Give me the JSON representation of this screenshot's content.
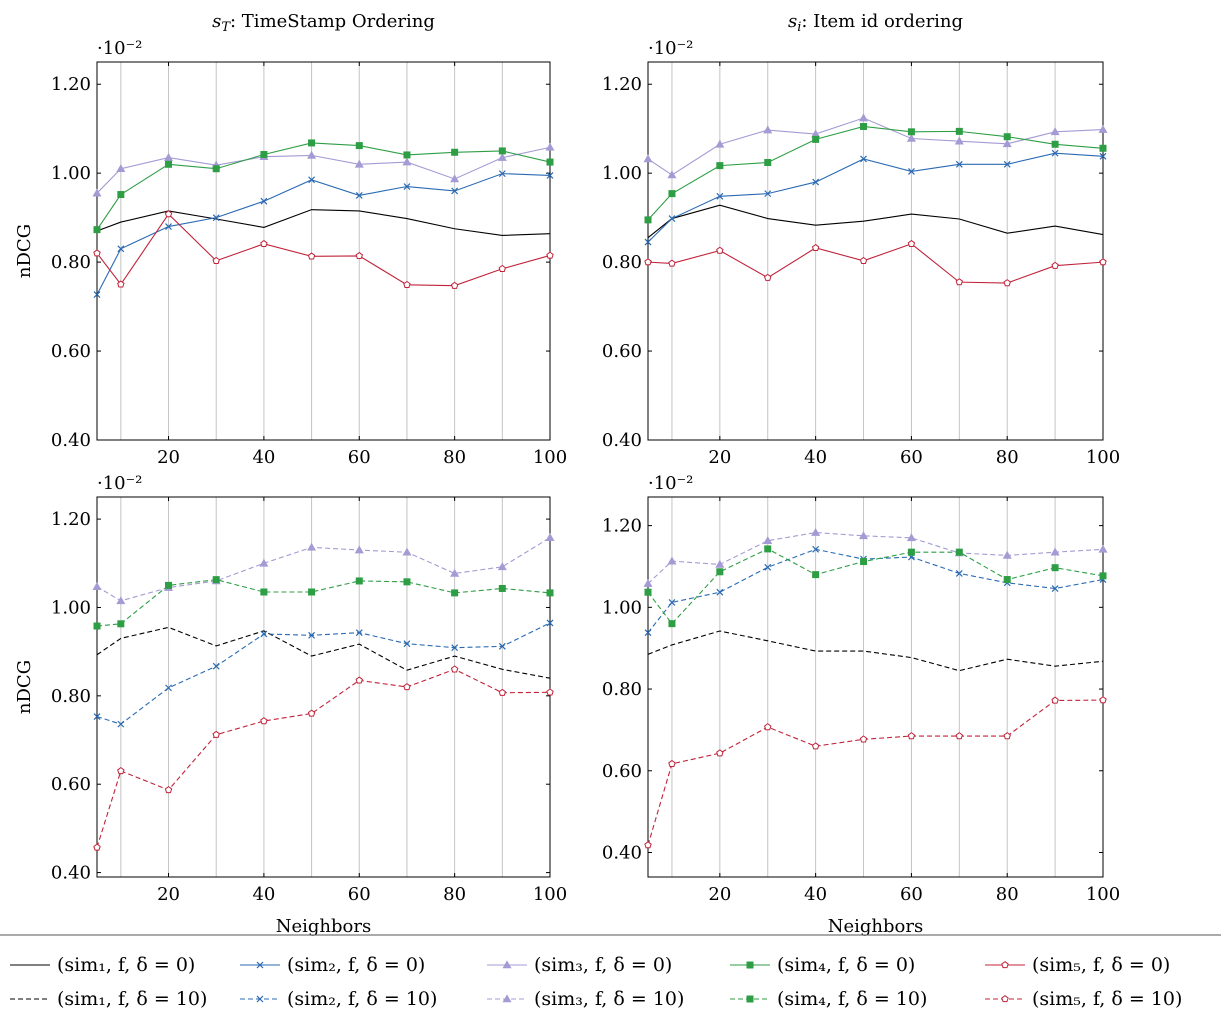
{
  "colors": {
    "sim1": "#000000",
    "sim2": "#2a6ab3",
    "sim3": "#a49bd4",
    "sim4": "#2e9e45",
    "sim5": "#c0233a",
    "grid": "#c4c4c4"
  },
  "legend": {
    "row1": [
      "(sim₁, f, δ = 0)",
      "(sim₂, f, δ = 0)",
      "(sim₃, f, δ = 0)",
      "(sim₄, f, δ = 0)",
      "(sim₅, f, δ = 0)"
    ],
    "row2": [
      "(sim₁, f, δ = 10)",
      "(sim₂, f, δ = 10)",
      "(sim₃, f, δ = 10)",
      "(sim₄, f, δ = 10)",
      "(sim₅, f, δ = 10)"
    ]
  },
  "chart_data": [
    {
      "type": "line",
      "title": "s_T: TimeStamp Ordering",
      "title_main": "s",
      "title_sub": "T",
      "title_rest": ": TimeStamp Ordering",
      "xlabel": "",
      "ylabel": "nDCG",
      "scale_label": "·10⁻²",
      "xlim": [
        5,
        100
      ],
      "ylim": [
        0.4,
        1.25
      ],
      "xticks": [
        20,
        40,
        60,
        80,
        100
      ],
      "yticks": [
        0.4,
        0.6,
        0.8,
        1.0,
        1.2
      ],
      "ytick_labels": [
        "0.40",
        "0.60",
        "0.80",
        "1.00",
        "1.20"
      ],
      "grid": "vertical",
      "x": [
        5,
        10,
        20,
        30,
        40,
        50,
        60,
        70,
        80,
        90,
        100
      ],
      "series": [
        {
          "name": "(sim₁, f, δ = 0)",
          "key": "sim1",
          "dashed": false,
          "marker": "none",
          "values": [
            0.87,
            0.89,
            0.915,
            0.897,
            0.878,
            0.918,
            0.915,
            0.898,
            0.875,
            0.86,
            0.864
          ]
        },
        {
          "name": "(sim₂, f, δ = 0)",
          "key": "sim2",
          "dashed": false,
          "marker": "x",
          "values": [
            0.727,
            0.83,
            0.88,
            0.9,
            0.937,
            0.985,
            0.95,
            0.97,
            0.96,
            0.999,
            0.995
          ]
        },
        {
          "name": "(sim₃, f, δ = 0)",
          "key": "sim3",
          "dashed": false,
          "marker": "triangle",
          "values": [
            0.955,
            1.01,
            1.035,
            1.018,
            1.037,
            1.04,
            1.02,
            1.025,
            0.987,
            1.035,
            1.058
          ]
        },
        {
          "name": "(sim₄, f, δ = 0)",
          "key": "sim4",
          "dashed": false,
          "marker": "square",
          "values": [
            0.873,
            0.952,
            1.02,
            1.01,
            1.042,
            1.068,
            1.062,
            1.041,
            1.047,
            1.05,
            1.025
          ]
        },
        {
          "name": "(sim₅, f, δ = 0)",
          "key": "sim5",
          "dashed": false,
          "marker": "pentagon",
          "values": [
            0.82,
            0.75,
            0.908,
            0.803,
            0.841,
            0.813,
            0.814,
            0.749,
            0.747,
            0.785,
            0.815
          ]
        }
      ]
    },
    {
      "type": "line",
      "title": "s_i: Item id ordering",
      "title_main": "s",
      "title_sub": "i",
      "title_rest": ": Item id ordering",
      "xlabel": "",
      "ylabel": "",
      "scale_label": "·10⁻²",
      "xlim": [
        5,
        100
      ],
      "ylim": [
        0.4,
        1.25
      ],
      "xticks": [
        20,
        40,
        60,
        80,
        100
      ],
      "yticks": [
        0.4,
        0.6,
        0.8,
        1.0,
        1.2
      ],
      "ytick_labels": [
        "0.40",
        "0.60",
        "0.80",
        "1.00",
        "1.20"
      ],
      "grid": "vertical",
      "x": [
        5,
        10,
        20,
        30,
        40,
        50,
        60,
        70,
        80,
        90,
        100
      ],
      "series": [
        {
          "name": "(sim₁, f, δ = 0)",
          "key": "sim1",
          "dashed": false,
          "marker": "none",
          "values": [
            0.855,
            0.898,
            0.928,
            0.898,
            0.883,
            0.892,
            0.908,
            0.897,
            0.865,
            0.881,
            0.862
          ]
        },
        {
          "name": "(sim₂, f, δ = 0)",
          "key": "sim2",
          "dashed": false,
          "marker": "x",
          "values": [
            0.845,
            0.898,
            0.948,
            0.954,
            0.98,
            1.032,
            1.004,
            1.02,
            1.02,
            1.045,
            1.038
          ]
        },
        {
          "name": "(sim₃, f, δ = 0)",
          "key": "sim3",
          "dashed": false,
          "marker": "triangle",
          "values": [
            1.032,
            0.996,
            1.065,
            1.097,
            1.088,
            1.124,
            1.078,
            1.072,
            1.066,
            1.093,
            1.098
          ]
        },
        {
          "name": "(sim₄, f, δ = 0)",
          "key": "sim4",
          "dashed": false,
          "marker": "square",
          "values": [
            0.895,
            0.954,
            1.017,
            1.024,
            1.076,
            1.105,
            1.093,
            1.094,
            1.082,
            1.065,
            1.056
          ]
        },
        {
          "name": "(sim₅, f, δ = 0)",
          "key": "sim5",
          "dashed": false,
          "marker": "pentagon",
          "values": [
            0.8,
            0.797,
            0.826,
            0.765,
            0.832,
            0.803,
            0.841,
            0.755,
            0.753,
            0.792,
            0.8
          ]
        }
      ]
    },
    {
      "type": "line",
      "title": "",
      "title_main": "",
      "title_sub": "",
      "title_rest": "",
      "xlabel": "Neighbors",
      "ylabel": "nDCG",
      "scale_label": "·10⁻²",
      "xlim": [
        5,
        100
      ],
      "ylim": [
        0.39,
        1.25
      ],
      "xticks": [
        20,
        40,
        60,
        80,
        100
      ],
      "yticks": [
        0.4,
        0.6,
        0.8,
        1.0,
        1.2
      ],
      "ytick_labels": [
        "0.40",
        "0.60",
        "0.80",
        "1.00",
        "1.20"
      ],
      "grid": "vertical",
      "x": [
        5,
        10,
        20,
        30,
        40,
        50,
        60,
        70,
        80,
        90,
        100
      ],
      "series": [
        {
          "name": "(sim₁, f, δ = 10)",
          "key": "sim1",
          "dashed": true,
          "marker": "none",
          "values": [
            0.893,
            0.93,
            0.955,
            0.913,
            0.947,
            0.89,
            0.917,
            0.858,
            0.89,
            0.86,
            0.84
          ]
        },
        {
          "name": "(sim₂, f, δ = 10)",
          "key": "sim2",
          "dashed": true,
          "marker": "x",
          "values": [
            0.753,
            0.736,
            0.818,
            0.867,
            0.94,
            0.937,
            0.943,
            0.918,
            0.909,
            0.912,
            0.965
          ]
        },
        {
          "name": "(sim₃, f, δ = 10)",
          "key": "sim3",
          "dashed": true,
          "marker": "triangle",
          "values": [
            1.047,
            1.015,
            1.045,
            1.06,
            1.1,
            1.136,
            1.13,
            1.125,
            1.077,
            1.092,
            1.158
          ]
        },
        {
          "name": "(sim₄, f, δ = 10)",
          "key": "sim4",
          "dashed": true,
          "marker": "square",
          "values": [
            0.958,
            0.963,
            1.05,
            1.063,
            1.035,
            1.035,
            1.06,
            1.058,
            1.033,
            1.043,
            1.033
          ]
        },
        {
          "name": "(sim₅, f, δ = 10)",
          "key": "sim5",
          "dashed": true,
          "marker": "pentagon",
          "values": [
            0.457,
            0.63,
            0.587,
            0.712,
            0.743,
            0.76,
            0.835,
            0.82,
            0.86,
            0.807,
            0.808
          ]
        }
      ]
    },
    {
      "type": "line",
      "title": "",
      "title_main": "",
      "title_sub": "",
      "title_rest": "",
      "xlabel": "Neighbors",
      "ylabel": "",
      "scale_label": "·10⁻²",
      "xlim": [
        5,
        100
      ],
      "ylim": [
        0.34,
        1.27
      ],
      "xticks": [
        20,
        40,
        60,
        80,
        100
      ],
      "yticks": [
        0.4,
        0.6,
        0.8,
        1.0,
        1.2
      ],
      "ytick_labels": [
        "0.40",
        "0.60",
        "0.80",
        "1.00",
        "1.20"
      ],
      "grid": "vertical",
      "x": [
        5,
        10,
        20,
        30,
        40,
        50,
        60,
        70,
        80,
        90,
        100
      ],
      "series": [
        {
          "name": "(sim₁, f, δ = 10)",
          "key": "sim1",
          "dashed": true,
          "marker": "none",
          "values": [
            0.885,
            0.908,
            0.942,
            0.918,
            0.893,
            0.893,
            0.877,
            0.845,
            0.873,
            0.856,
            0.868
          ]
        },
        {
          "name": "(sim₂, f, δ = 10)",
          "key": "sim2",
          "dashed": true,
          "marker": "x",
          "values": [
            0.938,
            1.012,
            1.037,
            1.098,
            1.142,
            1.118,
            1.123,
            1.083,
            1.06,
            1.046,
            1.068
          ]
        },
        {
          "name": "(sim₃, f, δ = 10)",
          "key": "sim3",
          "dashed": true,
          "marker": "triangle",
          "values": [
            1.058,
            1.113,
            1.105,
            1.163,
            1.183,
            1.175,
            1.17,
            1.133,
            1.127,
            1.135,
            1.142
          ]
        },
        {
          "name": "(sim₄, f, δ = 10)",
          "key": "sim4",
          "dashed": true,
          "marker": "square",
          "values": [
            1.037,
            0.96,
            1.087,
            1.143,
            1.08,
            1.112,
            1.135,
            1.135,
            1.068,
            1.097,
            1.077
          ]
        },
        {
          "name": "(sim₅, f, δ = 10)",
          "key": "sim5",
          "dashed": true,
          "marker": "pentagon",
          "values": [
            0.418,
            0.617,
            0.643,
            0.707,
            0.66,
            0.677,
            0.685,
            0.685,
            0.685,
            0.772,
            0.773
          ]
        }
      ]
    }
  ]
}
